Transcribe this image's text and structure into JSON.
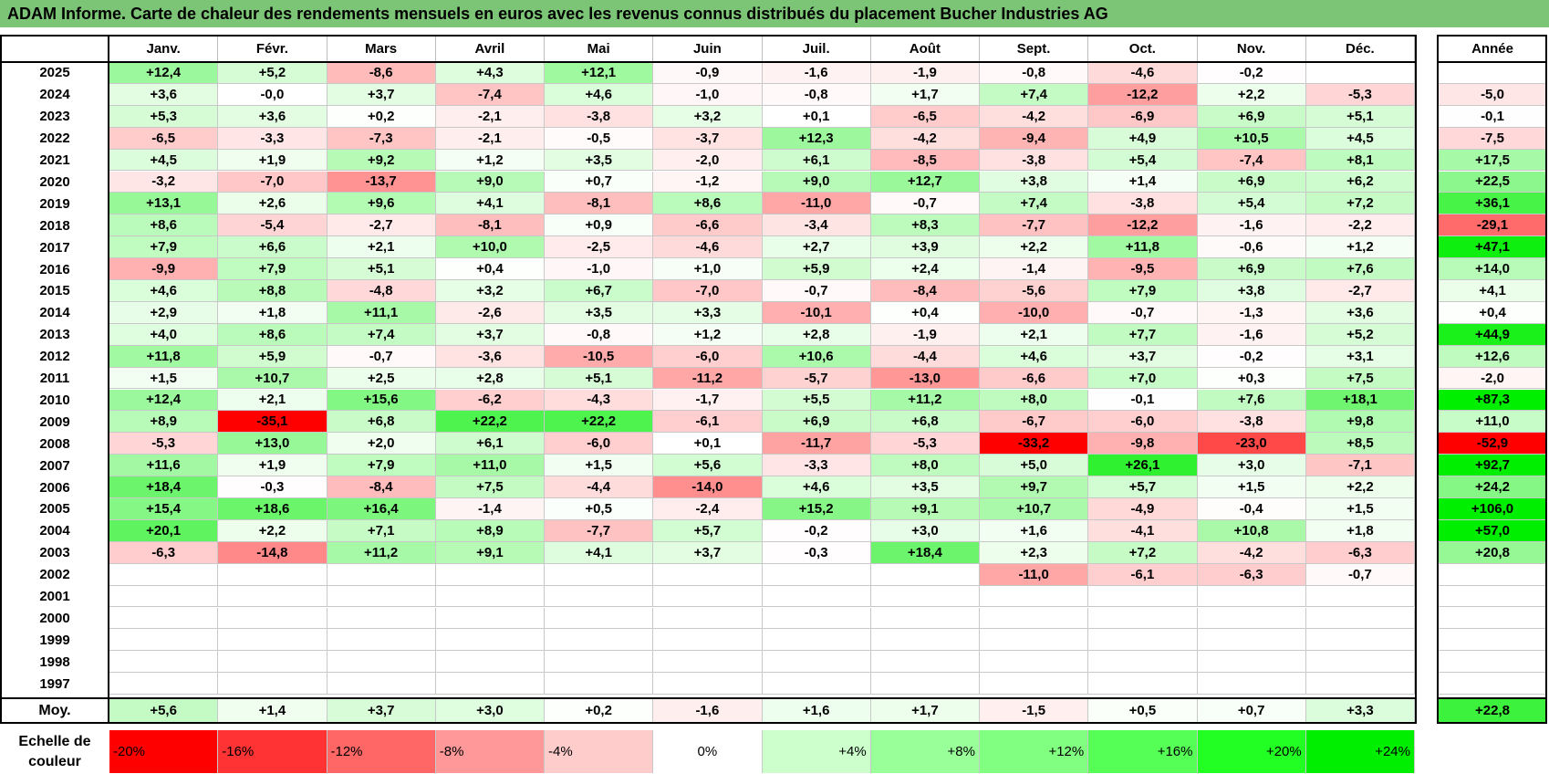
{
  "title": "ADAM Informe. Carte de chaleur des rendements mensuels en euros avec les revenus connus distribués du placement Bucher Industries AG",
  "chart_data": {
    "type": "heatmap",
    "title": "ADAM Informe. Carte de chaleur des rendements mensuels en euros avec les revenus connus distribués du placement Bucher Industries AG",
    "months": [
      "Janv.",
      "Févr.",
      "Mars",
      "Avril",
      "Mai",
      "Juin",
      "Juil.",
      "Août",
      "Sept.",
      "Oct.",
      "Nov.",
      "Déc."
    ],
    "year_header": "Année",
    "rows": [
      {
        "year": "2025",
        "values": [
          "+12,4",
          "+5,2",
          "-8,6",
          "+4,3",
          "+12,1",
          "-0,9",
          "-1,6",
          "-1,9",
          "-0,8",
          "-4,6",
          "-0,2",
          ""
        ],
        "annual": ""
      },
      {
        "year": "2024",
        "values": [
          "+3,6",
          "-0,0",
          "+3,7",
          "-7,4",
          "+4,6",
          "-1,0",
          "-0,8",
          "+1,7",
          "+7,4",
          "-12,2",
          "+2,2",
          "-5,3"
        ],
        "annual": "-5,0"
      },
      {
        "year": "2023",
        "values": [
          "+5,3",
          "+3,6",
          "+0,2",
          "-2,1",
          "-3,8",
          "+3,2",
          "+0,1",
          "-6,5",
          "-4,2",
          "-6,9",
          "+6,9",
          "+5,1"
        ],
        "annual": "-0,1"
      },
      {
        "year": "2022",
        "values": [
          "-6,5",
          "-3,3",
          "-7,3",
          "-2,1",
          "-0,5",
          "-3,7",
          "+12,3",
          "-4,2",
          "-9,4",
          "+4,9",
          "+10,5",
          "+4,5"
        ],
        "annual": "-7,5"
      },
      {
        "year": "2021",
        "values": [
          "+4,5",
          "+1,9",
          "+9,2",
          "+1,2",
          "+3,5",
          "-2,0",
          "+6,1",
          "-8,5",
          "-3,8",
          "+5,4",
          "-7,4",
          "+8,1"
        ],
        "annual": "+17,5"
      },
      {
        "year": "2020",
        "values": [
          "-3,2",
          "-7,0",
          "-13,7",
          "+9,0",
          "+0,7",
          "-1,2",
          "+9,0",
          "+12,7",
          "+3,8",
          "+1,4",
          "+6,9",
          "+6,2"
        ],
        "annual": "+22,5"
      },
      {
        "year": "2019",
        "values": [
          "+13,1",
          "+2,6",
          "+9,6",
          "+4,1",
          "-8,1",
          "+8,6",
          "-11,0",
          "-0,7",
          "+7,4",
          "-3,8",
          "+5,4",
          "+7,2"
        ],
        "annual": "+36,1"
      },
      {
        "year": "2018",
        "values": [
          "+8,6",
          "-5,4",
          "-2,7",
          "-8,1",
          "+0,9",
          "-6,6",
          "-3,4",
          "+8,3",
          "-7,7",
          "-12,2",
          "-1,6",
          "-2,2"
        ],
        "annual": "-29,1"
      },
      {
        "year": "2017",
        "values": [
          "+7,9",
          "+6,6",
          "+2,1",
          "+10,0",
          "-2,5",
          "-4,6",
          "+2,7",
          "+3,9",
          "+2,2",
          "+11,8",
          "-0,6",
          "+1,2"
        ],
        "annual": "+47,1"
      },
      {
        "year": "2016",
        "values": [
          "-9,9",
          "+7,9",
          "+5,1",
          "+0,4",
          "-1,0",
          "+1,0",
          "+5,9",
          "+2,4",
          "-1,4",
          "-9,5",
          "+6,9",
          "+7,6"
        ],
        "annual": "+14,0"
      },
      {
        "year": "2015",
        "values": [
          "+4,6",
          "+8,8",
          "-4,8",
          "+3,2",
          "+6,7",
          "-7,0",
          "-0,7",
          "-8,4",
          "-5,6",
          "+7,9",
          "+3,8",
          "-2,7"
        ],
        "annual": "+4,1"
      },
      {
        "year": "2014",
        "values": [
          "+2,9",
          "+1,8",
          "+11,1",
          "-2,6",
          "+3,5",
          "+3,3",
          "-10,1",
          "+0,4",
          "-10,0",
          "-0,7",
          "-1,3",
          "+3,6"
        ],
        "annual": "+0,4"
      },
      {
        "year": "2013",
        "values": [
          "+4,0",
          "+8,6",
          "+7,4",
          "+3,7",
          "-0,8",
          "+1,2",
          "+2,8",
          "-1,9",
          "+2,1",
          "+7,7",
          "-1,6",
          "+5,2"
        ],
        "annual": "+44,9"
      },
      {
        "year": "2012",
        "values": [
          "+11,8",
          "+5,9",
          "-0,7",
          "-3,6",
          "-10,5",
          "-6,0",
          "+10,6",
          "-4,4",
          "+4,6",
          "+3,7",
          "-0,2",
          "+3,1"
        ],
        "annual": "+12,6"
      },
      {
        "year": "2011",
        "values": [
          "+1,5",
          "+10,7",
          "+2,5",
          "+2,8",
          "+5,1",
          "-11,2",
          "-5,7",
          "-13,0",
          "-6,6",
          "+7,0",
          "+0,3",
          "+7,5"
        ],
        "annual": "-2,0"
      },
      {
        "year": "2010",
        "values": [
          "+12,4",
          "+2,1",
          "+15,6",
          "-6,2",
          "-4,3",
          "-1,7",
          "+5,5",
          "+11,2",
          "+8,0",
          "-0,1",
          "+7,6",
          "+18,1"
        ],
        "annual": "+87,3"
      },
      {
        "year": "2009",
        "values": [
          "+8,9",
          "-35,1",
          "+6,8",
          "+22,2",
          "+22,2",
          "-6,1",
          "+6,9",
          "+6,8",
          "-6,7",
          "-6,0",
          "-3,8",
          "+9,8"
        ],
        "annual": "+11,0"
      },
      {
        "year": "2008",
        "values": [
          "-5,3",
          "+13,0",
          "+2,0",
          "+6,1",
          "-6,0",
          "+0,1",
          "-11,7",
          "-5,3",
          "-33,2",
          "-9,8",
          "-23,0",
          "+8,5"
        ],
        "annual": "-52,9"
      },
      {
        "year": "2007",
        "values": [
          "+11,6",
          "+1,9",
          "+7,9",
          "+11,0",
          "+1,5",
          "+5,6",
          "-3,3",
          "+8,0",
          "+5,0",
          "+26,1",
          "+3,0",
          "-7,1"
        ],
        "annual": "+92,7"
      },
      {
        "year": "2006",
        "values": [
          "+18,4",
          "-0,3",
          "-8,4",
          "+7,5",
          "-4,4",
          "-14,0",
          "+4,6",
          "+3,5",
          "+9,7",
          "+5,7",
          "+1,5",
          "+2,2"
        ],
        "annual": "+24,2"
      },
      {
        "year": "2005",
        "values": [
          "+15,4",
          "+18,6",
          "+16,4",
          "-1,4",
          "+0,5",
          "-2,4",
          "+15,2",
          "+9,1",
          "+10,7",
          "-4,9",
          "-0,4",
          "+1,5"
        ],
        "annual": "+106,0"
      },
      {
        "year": "2004",
        "values": [
          "+20,1",
          "+2,2",
          "+7,1",
          "+8,9",
          "-7,7",
          "+5,7",
          "-0,2",
          "+3,0",
          "+1,6",
          "-4,1",
          "+10,8",
          "+1,8"
        ],
        "annual": "+57,0"
      },
      {
        "year": "2003",
        "values": [
          "-6,3",
          "-14,8",
          "+11,2",
          "+9,1",
          "+4,1",
          "+3,7",
          "-0,3",
          "+18,4",
          "+2,3",
          "+7,2",
          "-4,2",
          "-6,3"
        ],
        "annual": "+20,8"
      },
      {
        "year": "2002",
        "values": [
          "",
          "",
          "",
          "",
          "",
          "",
          "",
          "",
          "-11,0",
          "-6,1",
          "-6,3",
          "-0,7"
        ],
        "annual": ""
      },
      {
        "year": "2001",
        "values": [
          "",
          "",
          "",
          "",
          "",
          "",
          "",
          "",
          "",
          "",
          "",
          ""
        ],
        "annual": ""
      },
      {
        "year": "2000",
        "values": [
          "",
          "",
          "",
          "",
          "",
          "",
          "",
          "",
          "",
          "",
          "",
          ""
        ],
        "annual": ""
      },
      {
        "year": "1999",
        "values": [
          "",
          "",
          "",
          "",
          "",
          "",
          "",
          "",
          "",
          "",
          "",
          ""
        ],
        "annual": ""
      },
      {
        "year": "1998",
        "values": [
          "",
          "",
          "",
          "",
          "",
          "",
          "",
          "",
          "",
          "",
          "",
          ""
        ],
        "annual": ""
      },
      {
        "year": "1997",
        "values": [
          "",
          "",
          "",
          "",
          "",
          "",
          "",
          "",
          "",
          "",
          "",
          ""
        ],
        "annual": ""
      }
    ],
    "average": {
      "label": "Moy.",
      "values": [
        "+5,6",
        "+1,4",
        "+3,7",
        "+3,0",
        "+0,2",
        "-1,6",
        "+1,6",
        "+1,7",
        "-1,5",
        "+0,5",
        "+0,7",
        "+3,3"
      ],
      "annual": "+22,8"
    },
    "scale": {
      "label_line1": "Echelle de",
      "label_line2": "couleur",
      "steps": [
        {
          "label": "-20%",
          "color": "#ff0000"
        },
        {
          "label": "-16%",
          "color": "#ff3333"
        },
        {
          "label": "-12%",
          "color": "#ff6666"
        },
        {
          "label": "-8%",
          "color": "#ff9999"
        },
        {
          "label": "-4%",
          "color": "#ffcccc"
        },
        {
          "label": "0%",
          "color": "#ffffff"
        },
        {
          "label": "+4%",
          "color": "#ccffcc"
        },
        {
          "label": "+8%",
          "color": "#99ff99"
        },
        {
          "label": "+12%",
          "color": "#80ff80"
        },
        {
          "label": "+16%",
          "color": "#55ff55"
        },
        {
          "label": "+20%",
          "color": "#22ff22"
        },
        {
          "label": "+24%",
          "color": "#00ee00"
        }
      ]
    }
  }
}
